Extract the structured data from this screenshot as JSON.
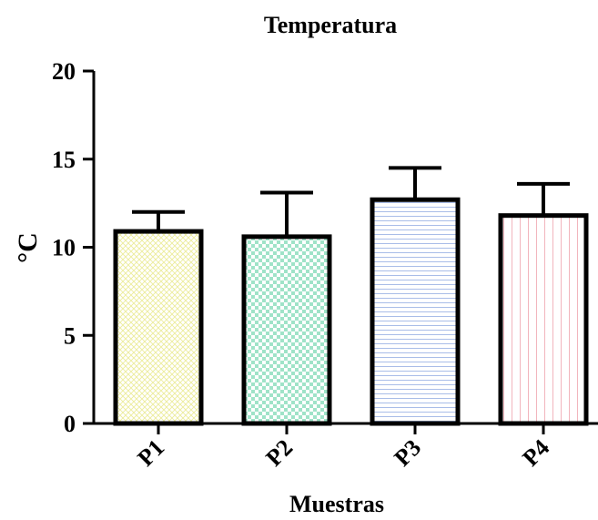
{
  "chart_data": {
    "type": "bar",
    "title": "Temperatura",
    "xlabel": "Muestras",
    "ylabel": "°C",
    "categories": [
      "P1",
      "P2",
      "P3",
      "P4"
    ],
    "values": [
      10.9,
      10.6,
      12.7,
      11.8
    ],
    "error_upper": [
      12.0,
      13.1,
      14.5,
      13.6
    ],
    "ylim": [
      0,
      20
    ],
    "yticks": [
      "0",
      "5",
      "10",
      "15",
      "20"
    ],
    "grid": false,
    "bar_fills": [
      {
        "pattern": "crosshatch",
        "color": "#ecec9a"
      },
      {
        "pattern": "checker",
        "color": "#9fe3c8"
      },
      {
        "pattern": "horizontal",
        "color": "#a9bde8"
      },
      {
        "pattern": "vertical",
        "color": "#f2b5bd"
      }
    ]
  }
}
